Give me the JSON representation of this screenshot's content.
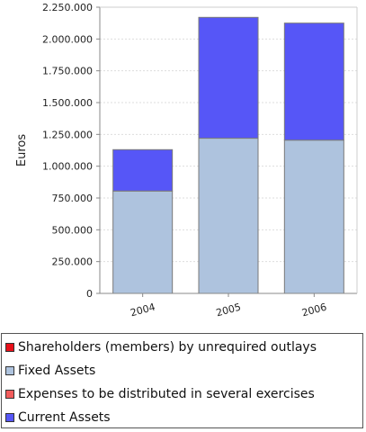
{
  "chart_data": {
    "type": "bar",
    "stacked": true,
    "categories": [
      "2004",
      "2005",
      "2006"
    ],
    "series": [
      {
        "name": "Shareholders (members) by unrequired outlays",
        "values": [
          0,
          0,
          0
        ],
        "color": "#e8101a"
      },
      {
        "name": "Fixed Assets",
        "values": [
          805000,
          1220000,
          1205000
        ],
        "color": "#aec3de"
      },
      {
        "name": "Expenses to be distributed in several exercises",
        "values": [
          0,
          0,
          0
        ],
        "color": "#f25c5c"
      },
      {
        "name": "Current Assets",
        "values": [
          325000,
          950000,
          920000
        ],
        "color": "#5656f7"
      }
    ],
    "ylabel": "Euros",
    "xlabel": "",
    "ylim": [
      0,
      2250000
    ],
    "yticks": [
      "0",
      "250.000",
      "500.000",
      "750.000",
      "1.000.000",
      "1.250.000",
      "1.500.000",
      "1.750.000",
      "2.000.000",
      "2.250.000"
    ],
    "grid": true,
    "legend_position": "bottom"
  }
}
